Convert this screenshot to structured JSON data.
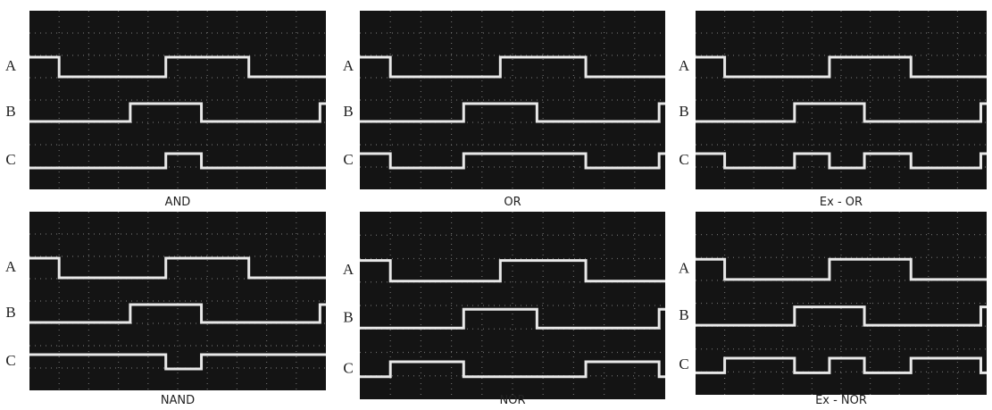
{
  "panels": [
    {
      "caption": "AND",
      "channels": [
        "A",
        "B",
        "C"
      ]
    },
    {
      "caption": "OR",
      "channels": [
        "A",
        "B",
        "C"
      ]
    },
    {
      "caption": "Ex - OR",
      "channels": [
        "A",
        "B",
        "C"
      ]
    },
    {
      "caption": "NAND",
      "channels": [
        "A",
        "B",
        "C"
      ]
    },
    {
      "caption": "NOR",
      "channels": [
        "A",
        "B",
        "C"
      ]
    },
    {
      "caption": "Ex - NOR",
      "channels": [
        "A",
        "B",
        "C"
      ]
    }
  ]
}
